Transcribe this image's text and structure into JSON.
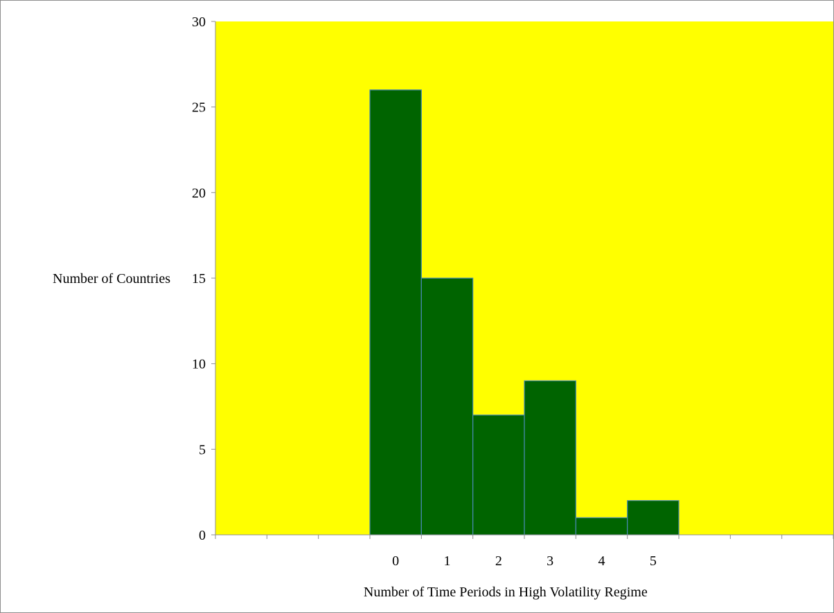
{
  "chart_data": {
    "type": "bar",
    "title": "",
    "xlabel": "Number of Time Periods in High Volatility Regime",
    "ylabel": "Number of Countries",
    "categories": [
      "",
      "",
      "",
      "0",
      "1",
      "2",
      "3",
      "4",
      "5",
      "",
      "",
      ""
    ],
    "values": [
      null,
      null,
      null,
      26,
      15,
      7,
      9,
      1,
      2,
      null,
      null,
      null
    ],
    "ylim": [
      0,
      30
    ],
    "yticks": [
      0,
      5,
      10,
      15,
      20,
      25,
      30
    ],
    "grid": false,
    "legend": "none",
    "colors": {
      "plot_background": "#ffff00",
      "bar_fill": "#006400",
      "bar_edge": "#4a8ab5",
      "axis": "#8c8c8c"
    }
  }
}
